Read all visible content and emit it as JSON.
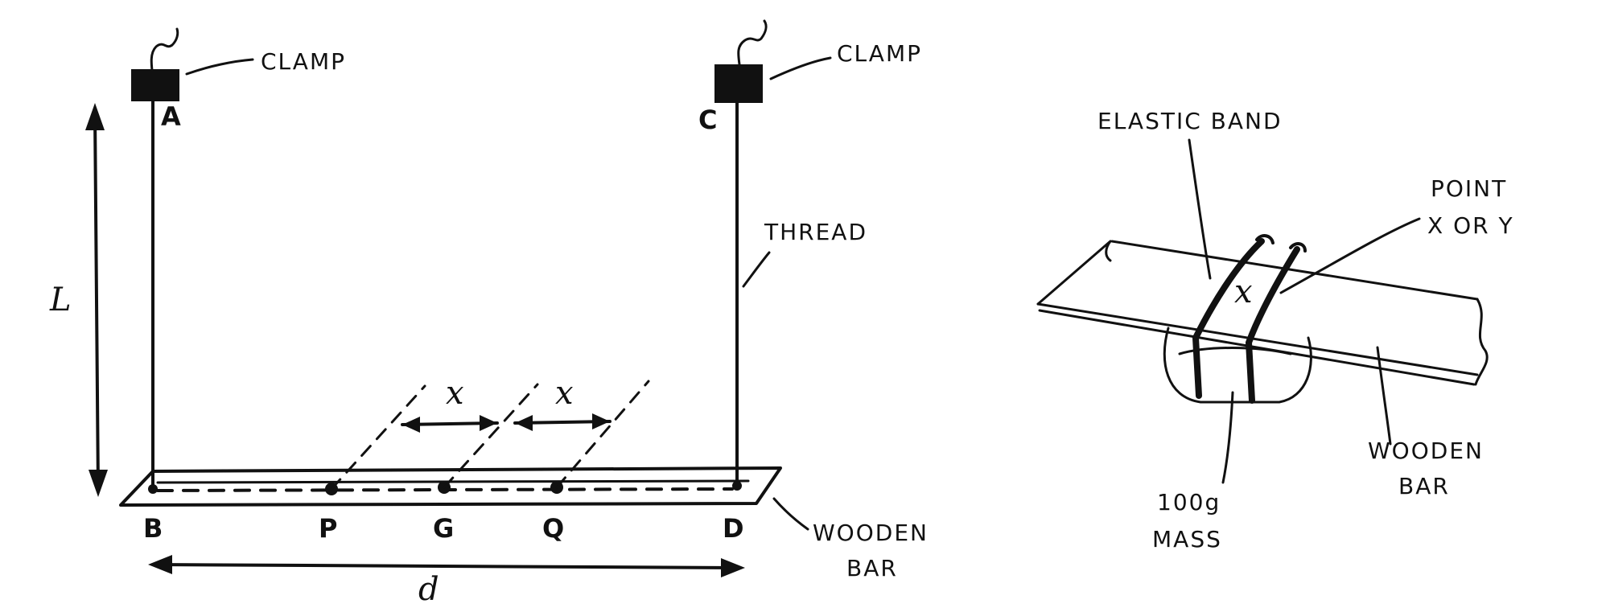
{
  "left_diagram": {
    "labels": {
      "clamp_left": "CLAMP",
      "clamp_right": "CLAMP",
      "thread": "THREAD",
      "wooden_bar_line1": "WOODEN",
      "wooden_bar_line2": "BAR",
      "length": "L",
      "width": "d",
      "offset_left": "x",
      "offset_right": "x"
    },
    "points": {
      "A": "A",
      "B": "B",
      "C": "C",
      "D": "D",
      "P": "P",
      "G": "G",
      "Q": "Q"
    }
  },
  "right_diagram": {
    "labels": {
      "elastic_band": "ELASTIC BAND",
      "point_line1": "POINT",
      "point_line2": "X OR Y",
      "mass_line1": "100g",
      "mass_line2": "MASS",
      "wooden_bar_line1": "WOODEN",
      "wooden_bar_line2": "BAR",
      "cross_mark": "x"
    }
  }
}
